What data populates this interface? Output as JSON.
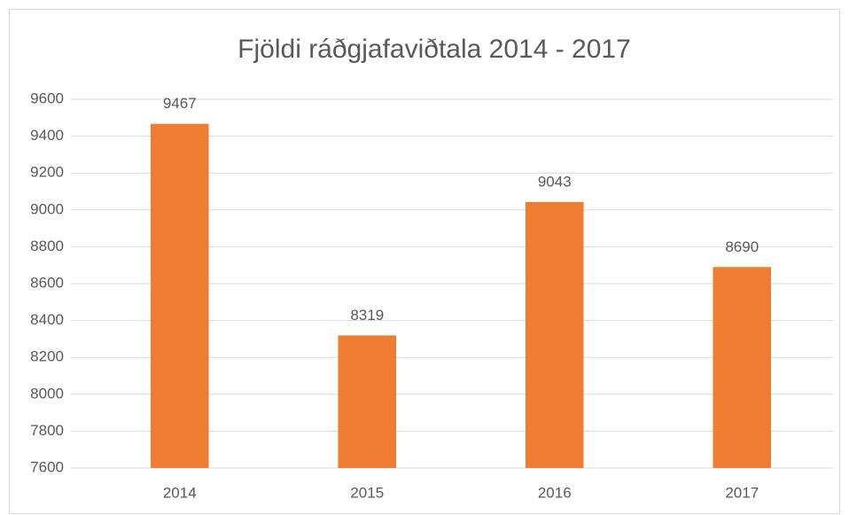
{
  "chart_data": {
    "type": "bar",
    "title": "Fjöldi ráðgjafaviðtala 2014 - 2017",
    "categories": [
      "2014",
      "2015",
      "2016",
      "2017"
    ],
    "values": [
      9467,
      8319,
      9043,
      8690
    ],
    "color": "#ed7d31",
    "ylim": [
      7600,
      9600
    ],
    "yticks": [
      7600,
      7800,
      8000,
      8200,
      8400,
      8600,
      8800,
      9000,
      9200,
      9400,
      9600
    ],
    "grid": true
  }
}
